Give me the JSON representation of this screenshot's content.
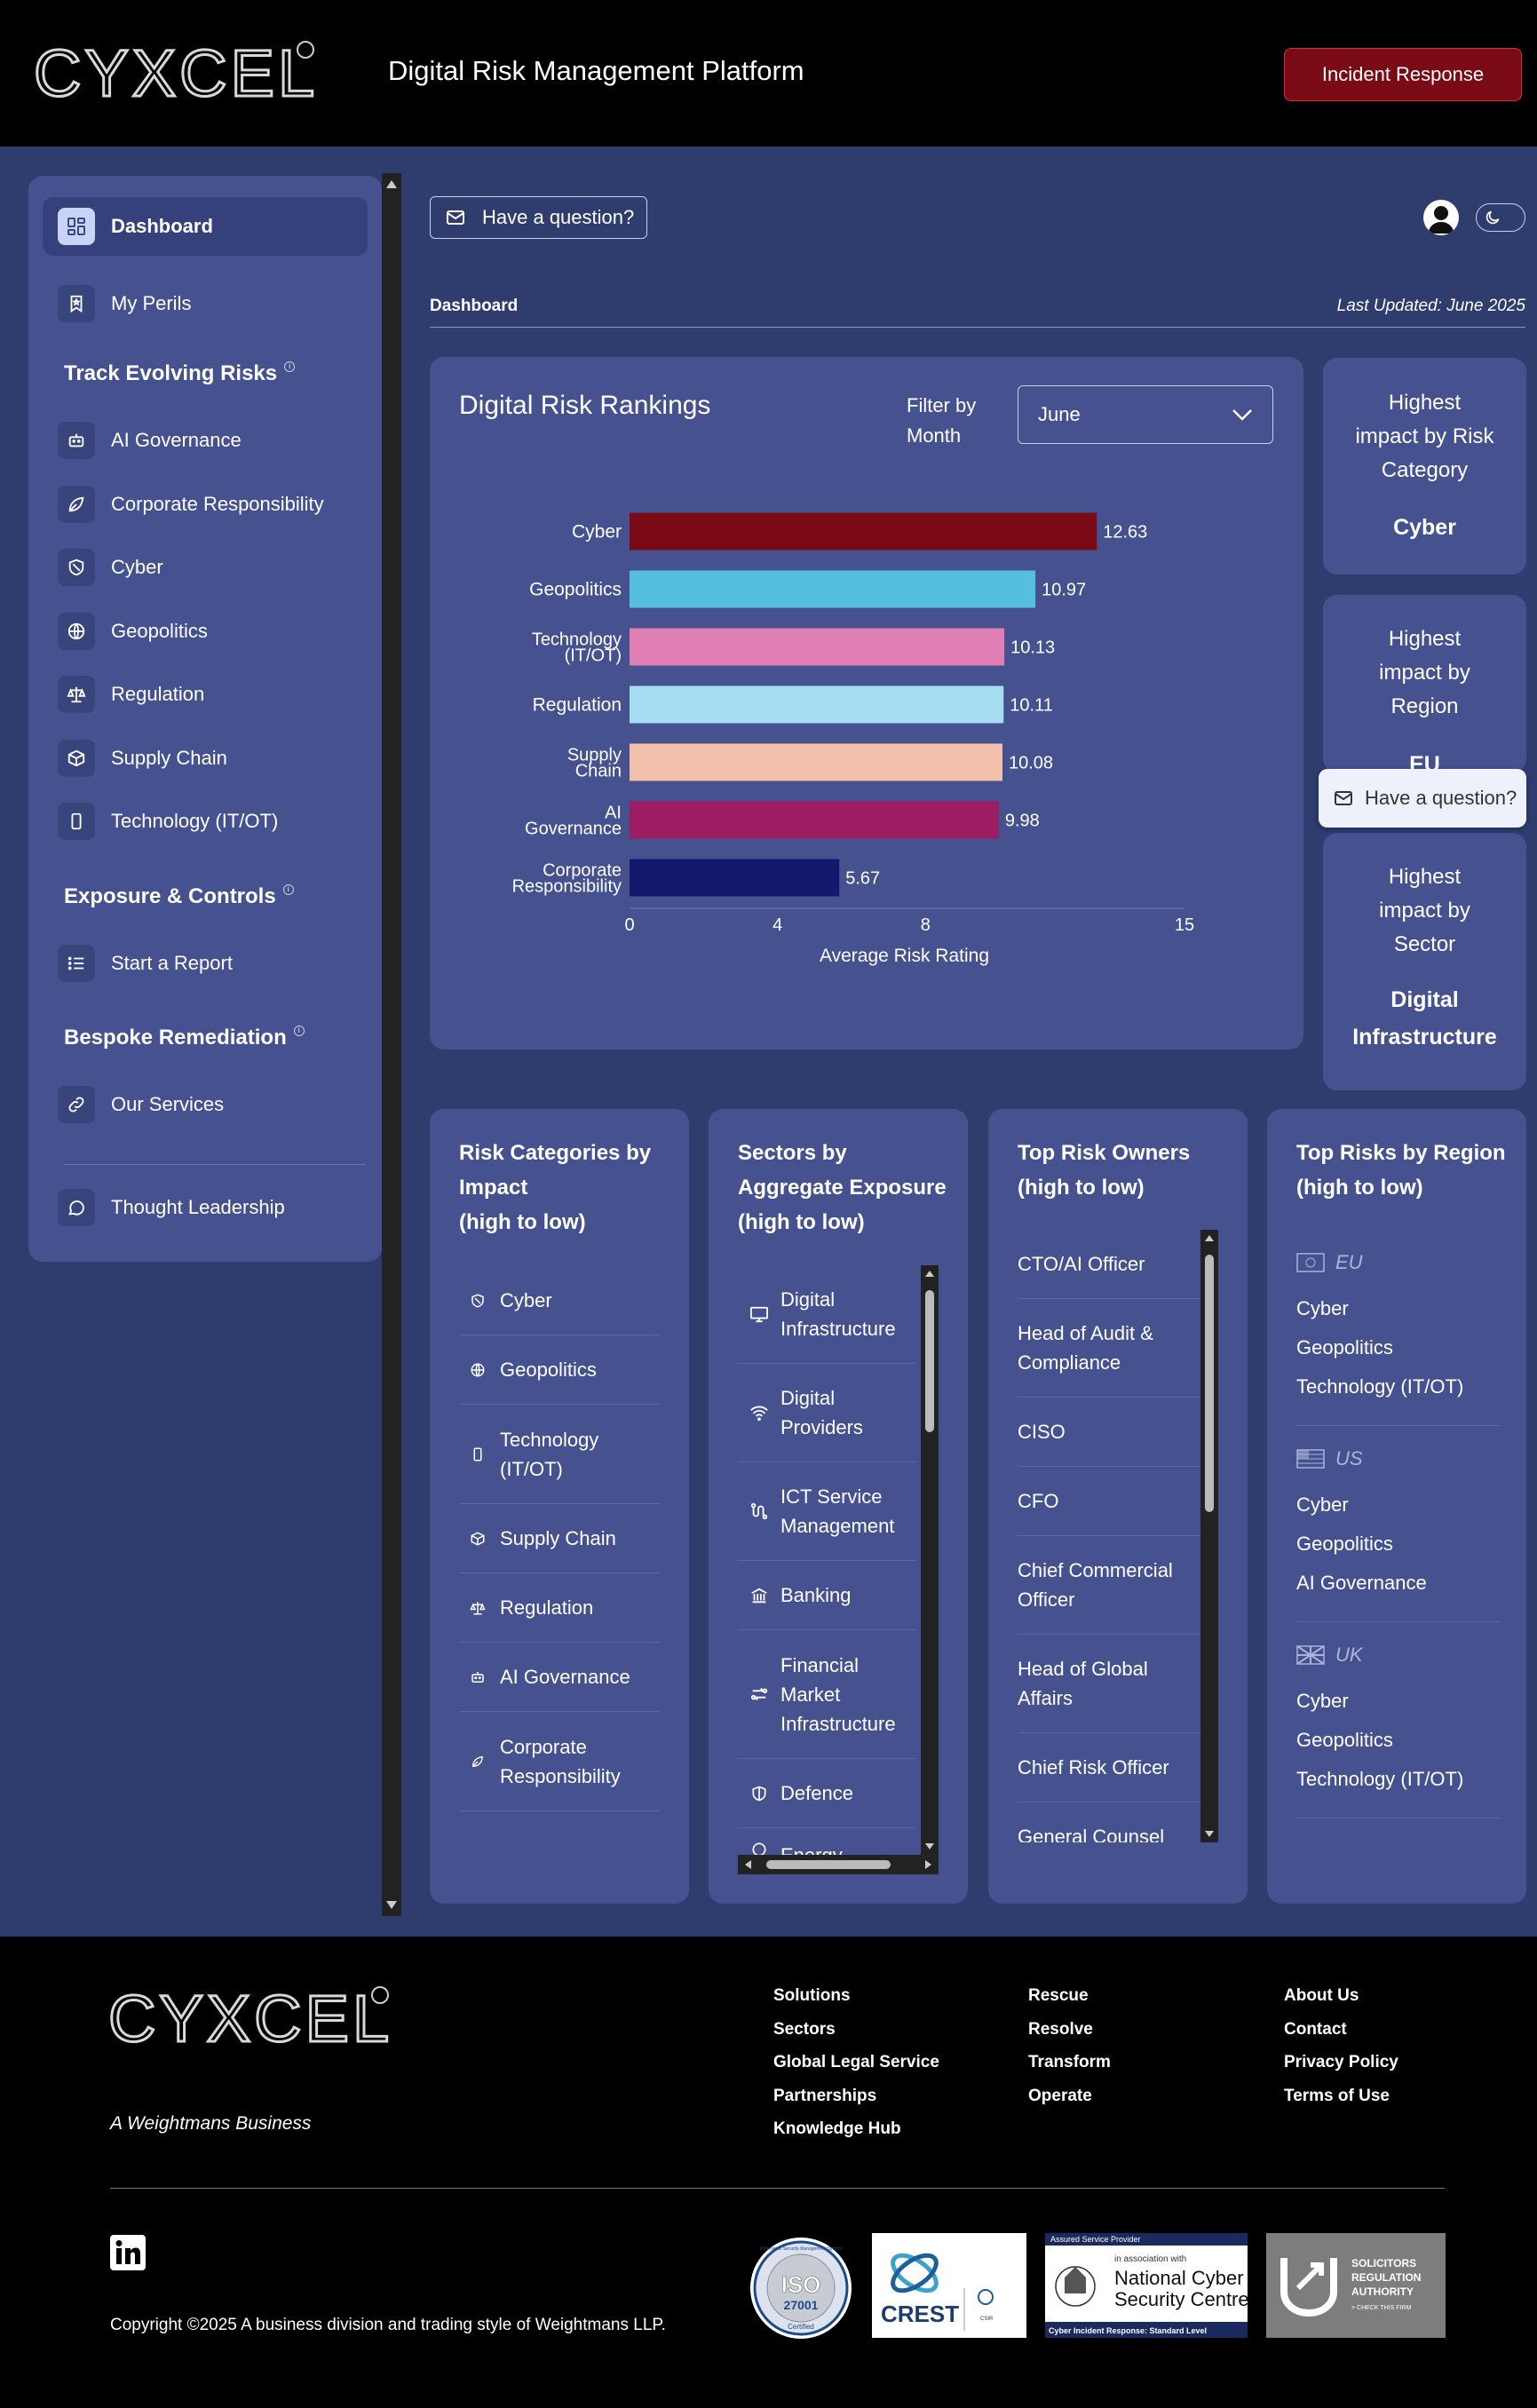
{
  "header": {
    "brand": "CYXCEL",
    "title": "Digital Risk Management Platform",
    "incident_button": "Incident Response"
  },
  "sidebar": {
    "dashboard": "Dashboard",
    "my_perils": "My Perils",
    "section_track": "Track Evolving Risks",
    "track_items": [
      "AI Governance",
      "Corporate Responsibility",
      "Cyber",
      "Geopolitics",
      "Regulation",
      "Supply Chain",
      "Technology (IT/OT)"
    ],
    "section_exposure": "Exposure & Controls",
    "start_report": "Start a Report",
    "section_bespoke": "Bespoke Remediation",
    "our_services": "Our Services",
    "thought_leadership": "Thought Leadership"
  },
  "main": {
    "question_button": "Have a question?",
    "breadcrumb": "Dashboard",
    "last_updated": "Last Updated: June 2025"
  },
  "rankings": {
    "title": "Digital Risk Rankings",
    "filter_label_1": "Filter by",
    "filter_label_2": "Month",
    "month": "June"
  },
  "chart_data": {
    "type": "bar",
    "orientation": "horizontal",
    "categories": [
      "Cyber",
      "Geopolitics",
      "Technology (IT/OT)",
      "Regulation",
      "Supply Chain",
      "AI Governance",
      "Corporate Responsibility"
    ],
    "category_lines": [
      [
        "Cyber"
      ],
      [
        "Geopolitics"
      ],
      [
        "Technology",
        "(IT/OT)"
      ],
      [
        "Regulation"
      ],
      [
        "Supply",
        "Chain"
      ],
      [
        "AI",
        "Governance"
      ],
      [
        "Corporate",
        "Responsibility"
      ]
    ],
    "values": [
      12.63,
      10.97,
      10.13,
      10.11,
      10.08,
      9.98,
      5.67
    ],
    "colors": [
      "#7a0a15",
      "#55bfdf",
      "#e07fb3",
      "#a6dcf2",
      "#f2bfaa",
      "#9e1c62",
      "#15196e"
    ],
    "xlabel": "Average Risk Rating",
    "xticks": [
      0,
      4,
      8,
      15
    ],
    "xlim": [
      0,
      15
    ]
  },
  "kpis": [
    {
      "label": [
        "Highest",
        "impact by Risk",
        "Category"
      ],
      "value": [
        "Cyber"
      ]
    },
    {
      "label": [
        "Highest",
        "impact by",
        "Region"
      ],
      "value": [
        "EU"
      ]
    },
    {
      "label": [
        "Highest",
        "impact by",
        "Sector"
      ],
      "value": [
        "Digital",
        "Infrastructure"
      ]
    }
  ],
  "float_question": "Have a question?",
  "risk_categories": {
    "title": [
      "Risk Categories by",
      "Impact",
      "(high to low)"
    ],
    "items": [
      {
        "icon": "shield-icon",
        "lines": [
          "Cyber"
        ]
      },
      {
        "icon": "globe-icon",
        "lines": [
          "Geopolitics"
        ]
      },
      {
        "icon": "device-icon",
        "lines": [
          "Technology",
          "(IT/OT)"
        ]
      },
      {
        "icon": "box-icon",
        "lines": [
          "Supply Chain"
        ]
      },
      {
        "icon": "scales-icon",
        "lines": [
          "Regulation"
        ]
      },
      {
        "icon": "robot-icon",
        "lines": [
          "AI Governance"
        ]
      },
      {
        "icon": "leaf-icon",
        "lines": [
          "Corporate",
          "Responsibility"
        ]
      }
    ]
  },
  "sectors": {
    "title": [
      "Sectors by",
      "Aggregate Exposure",
      "(high to low)"
    ],
    "items": [
      {
        "icon": "monitor-icon",
        "lines": [
          "Digital",
          "Infrastructure"
        ]
      },
      {
        "icon": "wifi-icon",
        "lines": [
          "Digital",
          "Providers"
        ]
      },
      {
        "icon": "route-icon",
        "lines": [
          "ICT Service",
          "Management"
        ]
      },
      {
        "icon": "bank-icon",
        "lines": [
          "Banking"
        ]
      },
      {
        "icon": "exchange-icon",
        "lines": [
          "Financial",
          "Market",
          "Infrastructure"
        ]
      },
      {
        "icon": "shield-outline-icon",
        "lines": [
          "Defence"
        ]
      },
      {
        "icon": "generic-icon",
        "lines": [
          "Energy"
        ]
      }
    ]
  },
  "owners": {
    "title": [
      "Top Risk Owners",
      "(high to low)"
    ],
    "items": [
      [
        "CTO/AI Officer"
      ],
      [
        "Head of Audit &",
        "Compliance"
      ],
      [
        "CISO"
      ],
      [
        "CFO"
      ],
      [
        "Chief Commercial",
        "Officer"
      ],
      [
        "Head of Global",
        "Affairs"
      ],
      [
        "Chief Risk Officer"
      ],
      [
        "General Counsel"
      ]
    ]
  },
  "regions": {
    "title": [
      "Top Risks by Region",
      "(high to low)"
    ],
    "items": [
      {
        "region": "EU",
        "risks": [
          "Cyber",
          "Geopolitics",
          "Technology (IT/OT)"
        ]
      },
      {
        "region": "US",
        "risks": [
          "Cyber",
          "Geopolitics",
          "AI Governance"
        ]
      },
      {
        "region": "UK",
        "risks": [
          "Cyber",
          "Geopolitics",
          "Technology (IT/OT)"
        ]
      }
    ]
  },
  "footer": {
    "tagline": "A Weightmans Business",
    "col1": [
      "Solutions",
      "Sectors",
      "Global Legal Service",
      "Partnerships",
      "Knowledge Hub"
    ],
    "col2": [
      "Rescue",
      "Resolve",
      "Transform",
      "Operate"
    ],
    "col3": [
      "About Us",
      "Contact",
      "Privacy Policy",
      "Terms of Use"
    ],
    "copyright": "Copyright ©2025 A business division and trading style of Weightmans LLP.",
    "badges": {
      "iso_ring": "Information Security Management System",
      "iso_main": "ISO",
      "iso_num": "27001",
      "iso_cert": "Certified",
      "crest": "CREST",
      "crest_sub": "CSIR",
      "ncsc_top": "Assured Service Provider",
      "ncsc_assoc": "in association with",
      "ncsc_name_1": "National Cyber",
      "ncsc_name_2": "Security Centre",
      "ncsc_bottom": "Cyber Incident Response: Standard Level",
      "sra_1": "SOLICITORS",
      "sra_2": "REGULATION",
      "sra_3": "AUTHORITY",
      "sra_4": "> CHECK THIS FIRM"
    }
  }
}
